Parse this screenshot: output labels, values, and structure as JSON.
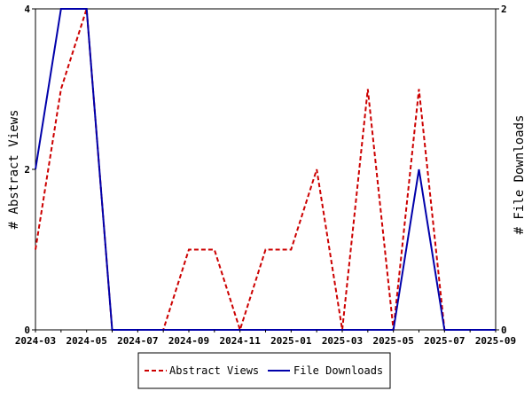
{
  "chart_data": {
    "type": "line",
    "xlabel": "",
    "ylabel_left": "# Abstract Views",
    "ylabel_right": "# File Downloads",
    "x": [
      "2024-03",
      "2024-04",
      "2024-05",
      "2024-06",
      "2024-07",
      "2024-08",
      "2024-09",
      "2024-10",
      "2024-11",
      "2024-12",
      "2025-01",
      "2025-02",
      "2025-03",
      "2025-04",
      "2025-05",
      "2025-06",
      "2025-07",
      "2025-08",
      "2025-09"
    ],
    "x_tick_labels": [
      "2024-03",
      "2024-05",
      "2024-07",
      "2024-09",
      "2024-11",
      "2025-01",
      "2025-03",
      "2025-05",
      "2025-07",
      "2025-09"
    ],
    "ylim_left": [
      0,
      4
    ],
    "yticks_left": [
      "0",
      "2",
      "4"
    ],
    "ylim_right": [
      0,
      2
    ],
    "yticks_right": [
      "0",
      "2"
    ],
    "series": [
      {
        "name": "Abstract Views",
        "axis": "left",
        "color": "#cc0000",
        "style": "dashed",
        "values": [
          1,
          3,
          4,
          0,
          0,
          0,
          1,
          1,
          0,
          1,
          1,
          2,
          0,
          3,
          0,
          3,
          0,
          0,
          0
        ]
      },
      {
        "name": "File Downloads",
        "axis": "right",
        "color": "#0000aa",
        "style": "solid",
        "values": [
          1,
          2,
          2,
          0,
          0,
          0,
          0,
          0,
          0,
          0,
          0,
          0,
          0,
          0,
          0,
          1,
          0,
          0,
          0
        ]
      }
    ],
    "grid": false,
    "legend_position": "bottom"
  }
}
